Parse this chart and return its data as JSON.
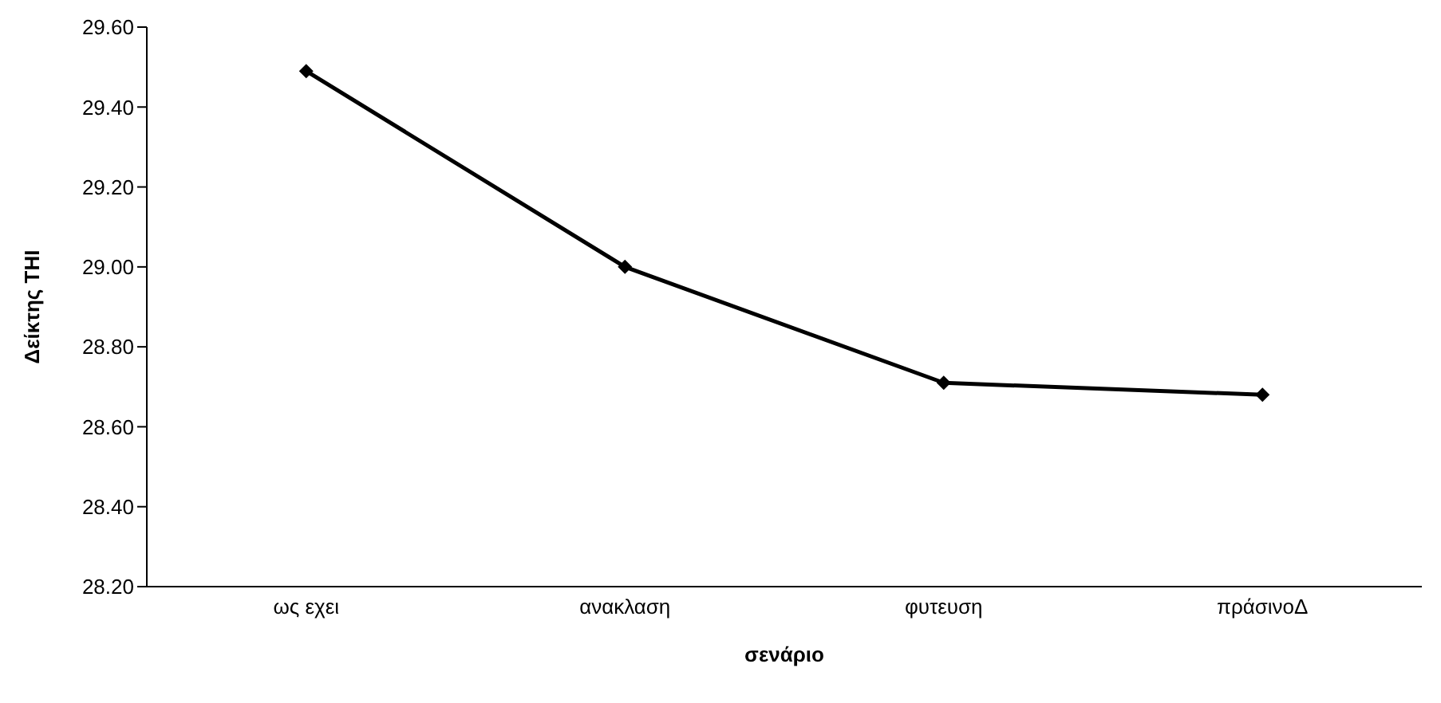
{
  "chart_data": {
    "type": "line",
    "xlabel": "σενάριο",
    "ylabel": "Δείκτης THI",
    "categories": [
      "ως εχει",
      "ανακλαση",
      "φυτευση",
      "πράσινοΔ"
    ],
    "series": [
      {
        "color": "#000000",
        "values": [
          29.49,
          29.0,
          28.71,
          28.68
        ]
      }
    ],
    "ylim": [
      28.2,
      29.6
    ],
    "yticks": [
      {
        "value": 28.2,
        "label": "28.20"
      },
      {
        "value": 28.4,
        "label": "28.40"
      },
      {
        "value": 28.6,
        "label": "28.60"
      },
      {
        "value": 28.8,
        "label": "28.80"
      },
      {
        "value": 29.0,
        "label": "29.00"
      },
      {
        "value": 29.2,
        "label": "29.20"
      },
      {
        "value": 29.4,
        "label": "29.40"
      },
      {
        "value": 29.6,
        "label": "29.60"
      }
    ],
    "grid": false,
    "legend": false,
    "marker": "diamond",
    "line_style": "solid"
  }
}
